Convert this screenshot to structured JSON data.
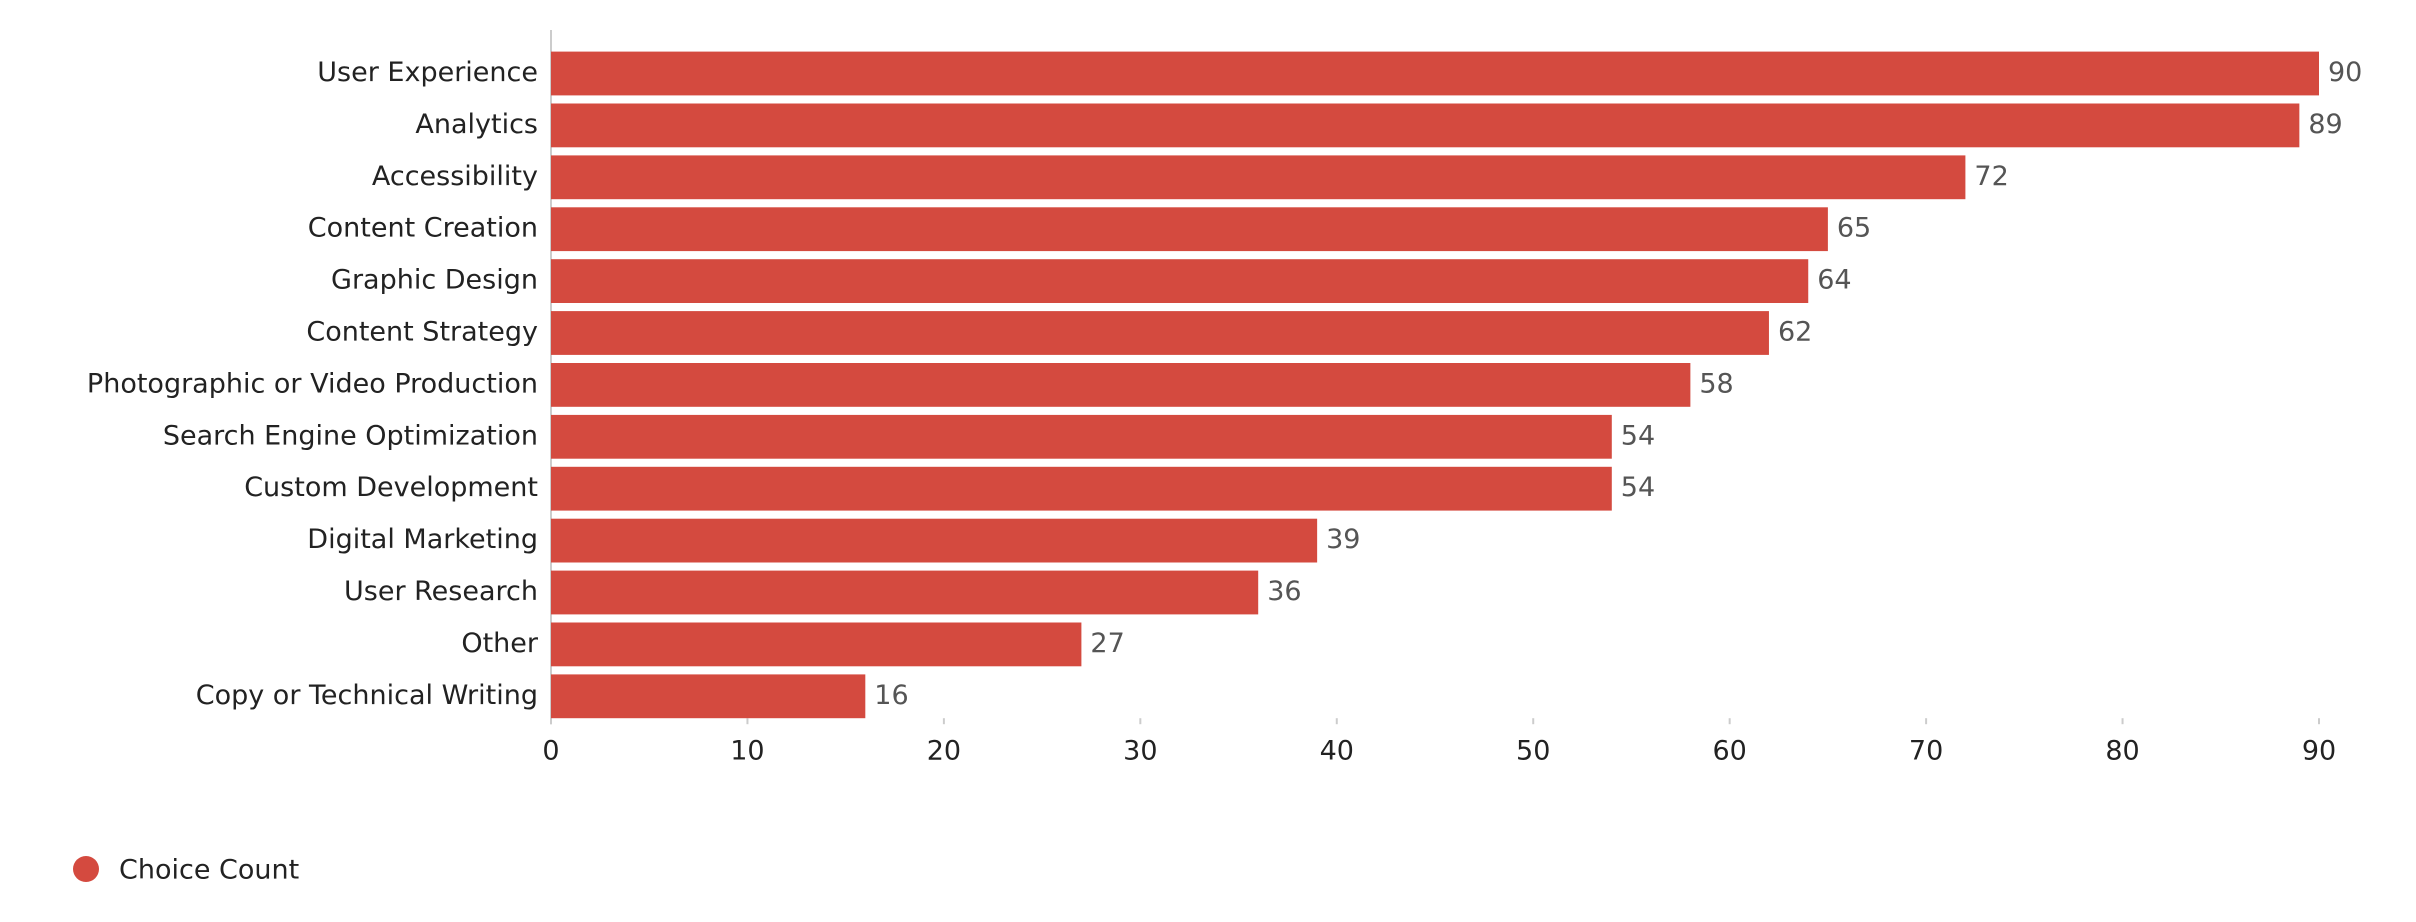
{
  "chart_data": {
    "type": "bar",
    "orientation": "horizontal",
    "categories": [
      "User Experience",
      "Analytics",
      "Accessibility",
      "Content Creation",
      "Graphic Design",
      "Content Strategy",
      "Photographic or Video Production",
      "Search Engine Optimization",
      "Custom Development",
      "Digital Marketing",
      "User Research",
      "Other",
      "Copy or Technical Writing"
    ],
    "series": [
      {
        "name": "Choice Count",
        "color": "#d44a3f",
        "values": [
          90,
          89,
          72,
          65,
          64,
          62,
          58,
          54,
          54,
          39,
          36,
          27,
          16
        ]
      }
    ],
    "xlim": [
      0,
      90
    ],
    "xticks": [
      0,
      10,
      20,
      30,
      40,
      50,
      60,
      70,
      80,
      90
    ],
    "grid": false,
    "legend": "bottom-left"
  }
}
